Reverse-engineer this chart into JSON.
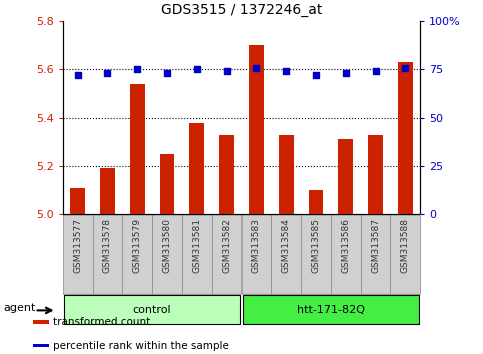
{
  "title": "GDS3515 / 1372246_at",
  "categories": [
    "GSM313577",
    "GSM313578",
    "GSM313579",
    "GSM313580",
    "GSM313581",
    "GSM313582",
    "GSM313583",
    "GSM313584",
    "GSM313585",
    "GSM313586",
    "GSM313587",
    "GSM313588"
  ],
  "bar_values": [
    5.11,
    5.19,
    5.54,
    5.25,
    5.38,
    5.33,
    5.7,
    5.33,
    5.1,
    5.31,
    5.33,
    5.63
  ],
  "bar_base": 5.0,
  "percentile_values": [
    72,
    73,
    75,
    73,
    75,
    74,
    76,
    74,
    72,
    73,
    74,
    76
  ],
  "bar_color": "#cc2200",
  "dot_color": "#0000cc",
  "left_ylim": [
    5.0,
    5.8
  ],
  "right_ylim": [
    0,
    100
  ],
  "left_yticks": [
    5.0,
    5.2,
    5.4,
    5.6,
    5.8
  ],
  "right_yticks": [
    0,
    25,
    50,
    75,
    100
  ],
  "right_yticklabels": [
    "0",
    "25",
    "50",
    "75",
    "100%"
  ],
  "grid_lines": [
    5.2,
    5.4,
    5.6
  ],
  "agent_label": "agent",
  "groups": [
    {
      "label": "control",
      "start": 0,
      "end": 6,
      "color": "#bbffbb"
    },
    {
      "label": "htt-171-82Q",
      "start": 6,
      "end": 12,
      "color": "#44ee44"
    }
  ],
  "legend_items": [
    {
      "label": "transformed count",
      "color": "#cc2200"
    },
    {
      "label": "percentile rank within the sample",
      "color": "#0000cc"
    }
  ],
  "bg_color": "#ffffff",
  "tick_color_left": "#cc2200",
  "tick_color_right": "#0000cc",
  "cell_bg": "#d0d0d0",
  "cell_edge": "#888888"
}
